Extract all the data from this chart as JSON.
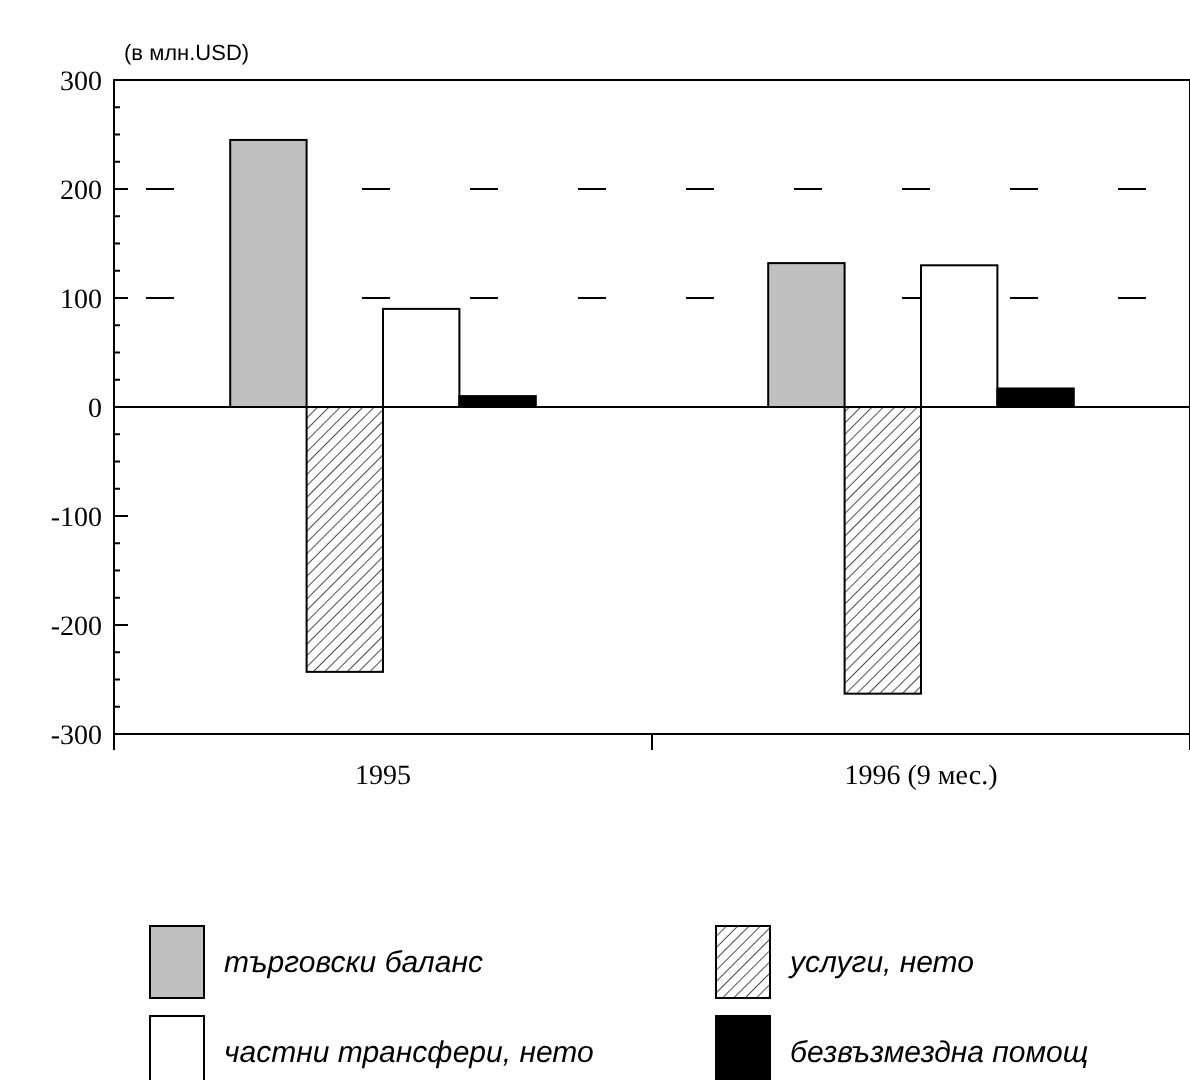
{
  "chart_data": {
    "type": "bar",
    "ylabel": "(в млн.USD)",
    "categories": [
      "1995",
      "1996 (9 мес.)"
    ],
    "series": [
      {
        "name": "търговски баланс",
        "color": "#c0c0c0",
        "values": [
          245,
          132
        ]
      },
      {
        "name": "услуги, нето",
        "color": "#000000",
        "values": [
          -243,
          -263
        ]
      },
      {
        "name": "частни трансфери, нето",
        "color": "#ffffff",
        "values": [
          90,
          130
        ]
      },
      {
        "name": "безвъзмездна помощ",
        "color": "#000000",
        "values": [
          10,
          17
        ]
      }
    ],
    "ylim": [
      -300,
      300
    ],
    "yticks": [
      -300,
      -200,
      -100,
      0,
      100,
      200,
      300
    ],
    "ref_lines": [
      {
        "axis": "y",
        "value": 100,
        "line_style": "dashed"
      },
      {
        "axis": "y",
        "value": 200,
        "line_style": "dashed"
      }
    ],
    "legend": "bottom"
  }
}
